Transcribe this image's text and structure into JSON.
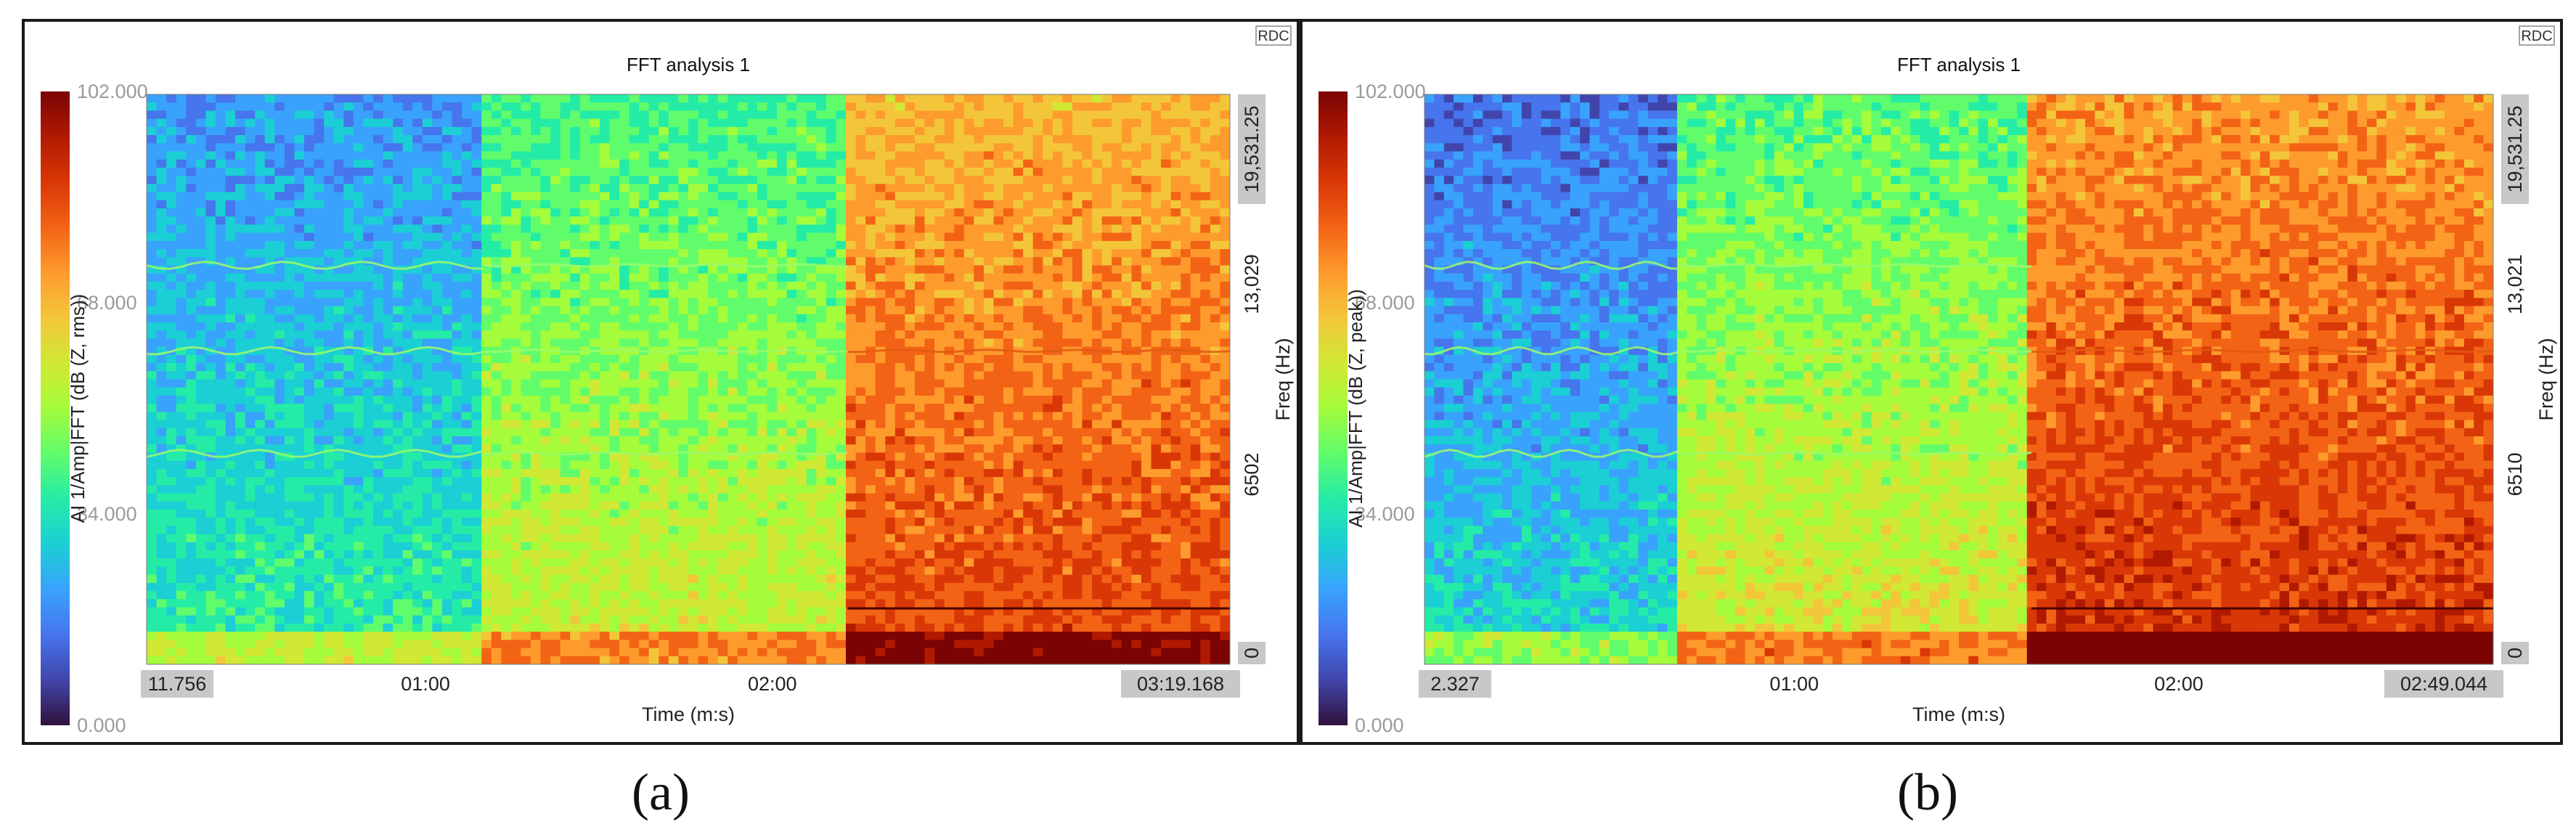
{
  "colors": {
    "colormap": [
      "#30123b",
      "#4145ab",
      "#4675ed",
      "#39a2fc",
      "#1bcfd4",
      "#24eca6",
      "#61fc6c",
      "#a4fc3b",
      "#d1e834",
      "#f3c63a",
      "#fe9b2d",
      "#f36315",
      "#d93806",
      "#b11901",
      "#7a0403"
    ],
    "frame": "#1a1a1a",
    "label_box": "#c8c8c8"
  },
  "chart_data": [
    {
      "type": "heatmap",
      "panel_label": "a",
      "title": "FFT analysis 1",
      "badge": "RDC",
      "xlabel": "Time (m:s)",
      "ylabel_right": "Freq (Hz)",
      "colorbar_label": "AI 1/Amp|FFT (dB (Z, rms))",
      "colorbar_ticks": [
        "102.000",
        "68.000",
        "34.000",
        "0.000"
      ],
      "colorbar_range": [
        0,
        102
      ],
      "x_start": "11.756",
      "x_end": "03:19.168",
      "x_ticks": [
        "01:00",
        "02:00"
      ],
      "freq_ticks": [
        "19,531.25",
        "13,029",
        "6502",
        "0"
      ],
      "freq_range_hz": [
        0,
        19531.25
      ],
      "segments": [
        {
          "t_start": 11.756,
          "t_end": 70,
          "level_db": 28
        },
        {
          "t_start": 70,
          "t_end": 133,
          "level_db": 48
        },
        {
          "t_start": 133,
          "t_end": 199.168,
          "level_db": 76
        }
      ]
    },
    {
      "type": "heatmap",
      "panel_label": "b",
      "title": "FFT analysis 1",
      "badge": "RDC",
      "xlabel": "Time (m:s)",
      "ylabel_right": "Freq (Hz)",
      "colorbar_label": "AI 1/Amp|FFT (dB (Z, peak))",
      "colorbar_ticks": [
        "102.000",
        "68.000",
        "34.000",
        "0.000"
      ],
      "colorbar_range": [
        0,
        102
      ],
      "x_start": "2.327",
      "x_end": "02:49.044",
      "x_ticks": [
        "01:00",
        "02:00"
      ],
      "freq_ticks": [
        "19,531.25",
        "13,021",
        "6510",
        "0"
      ],
      "freq_range_hz": [
        0,
        19531.25
      ],
      "segments": [
        {
          "t_start": 2.327,
          "t_end": 42,
          "level_db": 22
        },
        {
          "t_start": 42,
          "t_end": 97,
          "level_db": 50
        },
        {
          "t_start": 97,
          "t_end": 169.044,
          "level_db": 80
        }
      ]
    }
  ],
  "captions": [
    "(a)",
    "(b)"
  ]
}
